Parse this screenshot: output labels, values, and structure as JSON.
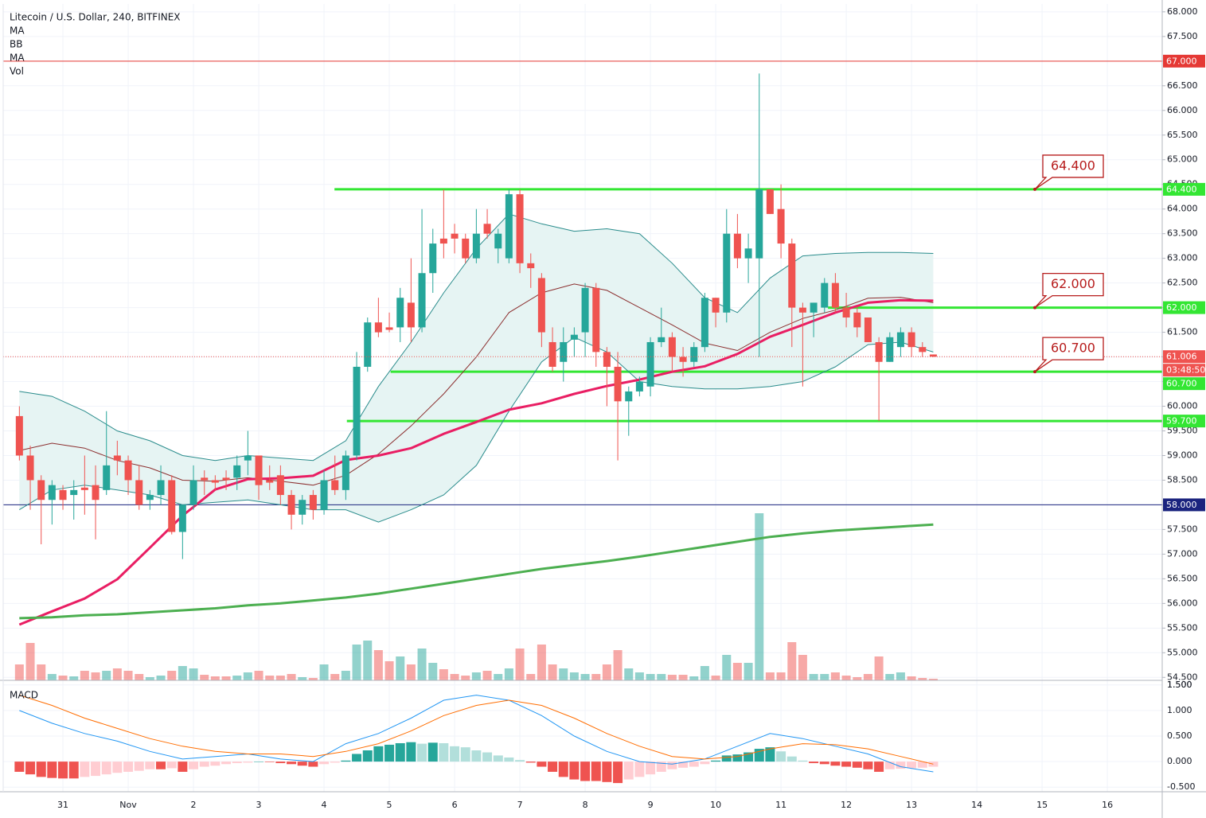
{
  "chart_data": [
    {
      "type": "candlestick",
      "title": "Litecoin / U.S. Dollar, 240, BITFINEX",
      "indicators": [
        "MA",
        "BB",
        "MA",
        "Vol"
      ],
      "xlim": [
        -0.915,
        16.84
      ],
      "xticks": [
        {
          "value": 0,
          "label": "31"
        },
        {
          "value": 1,
          "label": "Nov"
        },
        2,
        3,
        4,
        5,
        6,
        7,
        8,
        9,
        10,
        11,
        12,
        13,
        14,
        15,
        16
      ],
      "ylim": [
        54.44,
        68.24
      ],
      "yticks": [
        {
          "value": 54.5,
          "label": "54.500"
        },
        {
          "value": 55,
          "label": "55.000"
        },
        {
          "value": 55.5,
          "label": "55.500"
        },
        {
          "value": 56,
          "label": "56.000"
        },
        {
          "value": 56.5,
          "label": "56.500"
        },
        {
          "value": 57,
          "label": "57.000"
        },
        {
          "value": 57.5,
          "label": "57.500"
        },
        {
          "value": 58,
          "label": "58.000"
        },
        {
          "value": 58.5,
          "label": "58.500"
        },
        {
          "value": 59,
          "label": "59.000"
        },
        {
          "value": 59.5,
          "label": "59.500"
        },
        {
          "value": 60,
          "label": "60.000"
        },
        {
          "value": 60.5,
          "label": "60.500"
        },
        {
          "value": 61,
          "label": "61.000"
        },
        {
          "value": 61.5,
          "label": "61.500"
        },
        {
          "value": 62,
          "label": "62.000"
        },
        {
          "value": 62.5,
          "label": "62.500"
        },
        {
          "value": 63,
          "label": "63.000"
        },
        {
          "value": 63.5,
          "label": "63.500"
        },
        {
          "value": 64,
          "label": "64.000"
        },
        {
          "value": 64.5,
          "label": "64.500"
        },
        {
          "value": 65,
          "label": "65.000"
        },
        {
          "value": 65.5,
          "label": "65.500"
        },
        {
          "value": 66,
          "label": "66.000"
        },
        {
          "value": 66.5,
          "label": "66.500"
        },
        {
          "value": 67,
          "label": "67.000"
        },
        {
          "value": 67.5,
          "label": "67.500"
        },
        {
          "value": 68,
          "label": "68.000"
        }
      ],
      "grid": true,
      "up_color": "#26a69a",
      "down_color": "#ef5350",
      "x": [
        -0.667,
        -0.5,
        -0.333,
        -0.167,
        0,
        0.167,
        0.333,
        0.5,
        0.667,
        0.833,
        1,
        1.167,
        1.333,
        1.5,
        1.667,
        1.833,
        2,
        2.167,
        2.333,
        2.5,
        2.667,
        2.833,
        3,
        3.167,
        3.333,
        3.5,
        3.667,
        3.833,
        4,
        4.167,
        4.333,
        4.5,
        4.667,
        4.833,
        5,
        5.167,
        5.333,
        5.5,
        5.667,
        5.833,
        6,
        6.167,
        6.333,
        6.5,
        6.667,
        6.833,
        7,
        7.167,
        7.333,
        7.5,
        7.667,
        7.833,
        8,
        8.167,
        8.333,
        8.5,
        8.667,
        8.833,
        9,
        9.167,
        9.333,
        9.5,
        9.667,
        9.833,
        10,
        10.167,
        10.333,
        10.5,
        10.667,
        10.833,
        11,
        11.167,
        11.333,
        11.5,
        11.667,
        11.833,
        12,
        12.167,
        12.333,
        12.5,
        12.667,
        12.833,
        13,
        13.167,
        13.333
      ],
      "open": [
        59.8,
        59.0,
        58.5,
        58.1,
        58.3,
        58.2,
        58.35,
        58.4,
        58.3,
        59.0,
        58.9,
        58.5,
        58.1,
        58.2,
        58.5,
        57.45,
        58.0,
        58.55,
        58.5,
        58.55,
        58.55,
        58.9,
        59.0,
        58.5,
        58.6,
        58.2,
        57.8,
        58.2,
        57.9,
        58.5,
        58.3,
        59.0,
        60.8,
        61.7,
        61.6,
        61.6,
        62.1,
        61.6,
        62.7,
        63.4,
        63.5,
        63.4,
        63.0,
        63.7,
        63.2,
        63.0,
        64.3,
        62.9,
        62.6,
        61.3,
        60.9,
        61.35,
        61.5,
        62.4,
        61.1,
        60.8,
        60.1,
        60.3,
        60.4,
        61.3,
        61.4,
        61.0,
        60.9,
        61.2,
        62.2,
        61.9,
        63.5,
        63.0,
        63.0,
        64.4,
        64.0,
        63.3,
        62.0,
        61.9,
        62.0,
        62.5,
        62.0,
        61.9,
        61.8,
        61.3,
        60.9,
        61.2,
        61.5,
        61.2,
        61.05
      ],
      "high": [
        60.0,
        59.2,
        58.6,
        58.5,
        58.4,
        58.5,
        59.0,
        58.8,
        59.9,
        59.3,
        59.0,
        58.8,
        58.3,
        58.8,
        58.6,
        58.0,
        58.8,
        58.7,
        58.6,
        58.7,
        59.0,
        59.5,
        59.0,
        58.8,
        58.8,
        58.3,
        58.2,
        58.3,
        58.7,
        59.0,
        59.1,
        61.1,
        61.8,
        62.2,
        61.9,
        62.4,
        63.0,
        64.0,
        63.6,
        64.4,
        63.7,
        63.5,
        64.0,
        64.0,
        63.6,
        64.4,
        64.4,
        63.1,
        62.7,
        61.6,
        61.6,
        61.6,
        62.5,
        62.5,
        61.2,
        61.1,
        60.4,
        60.6,
        61.4,
        62.0,
        61.5,
        61.2,
        61.3,
        62.3,
        62.2,
        64.0,
        63.9,
        63.5,
        66.75,
        64.4,
        64.5,
        63.4,
        62.1,
        62.1,
        62.6,
        62.7,
        62.3,
        62.0,
        61.8,
        61.4,
        61.5,
        61.6,
        61.6,
        61.3,
        61.05
      ],
      "low": [
        58.9,
        57.9,
        57.2,
        57.6,
        57.9,
        57.7,
        57.8,
        57.3,
        58.2,
        58.6,
        58.2,
        57.9,
        57.9,
        58.0,
        57.4,
        56.9,
        57.9,
        58.2,
        58.3,
        58.3,
        58.3,
        58.6,
        58.1,
        58.3,
        58.0,
        57.5,
        57.6,
        57.7,
        57.8,
        58.2,
        58.1,
        58.9,
        60.7,
        61.4,
        61.5,
        61.3,
        61.3,
        61.5,
        62.3,
        63.0,
        63.1,
        62.9,
        62.9,
        63.4,
        62.9,
        62.9,
        62.7,
        62.4,
        61.2,
        60.7,
        60.5,
        61.0,
        61.0,
        60.8,
        60.0,
        58.9,
        59.4,
        60.2,
        60.2,
        61.2,
        60.7,
        60.6,
        60.8,
        61.1,
        61.6,
        61.7,
        62.8,
        62.5,
        61.0,
        63.9,
        63.0,
        61.2,
        60.4,
        61.4,
        61.9,
        61.9,
        61.6,
        61.4,
        61.3,
        59.7,
        60.9,
        61.0,
        61.0,
        61.0,
        61.0
      ],
      "close": [
        59.0,
        58.5,
        58.1,
        58.4,
        58.1,
        58.3,
        58.3,
        58.1,
        58.8,
        58.9,
        58.5,
        58.0,
        58.2,
        58.5,
        57.45,
        58.0,
        58.5,
        58.5,
        58.45,
        58.5,
        58.8,
        59.0,
        58.4,
        58.45,
        58.2,
        57.8,
        58.1,
        57.9,
        58.5,
        58.3,
        59.0,
        60.8,
        61.7,
        61.5,
        61.55,
        62.2,
        61.6,
        62.7,
        63.3,
        63.3,
        63.4,
        63.0,
        63.5,
        63.5,
        63.5,
        64.3,
        62.9,
        62.8,
        61.5,
        60.8,
        61.3,
        61.45,
        62.4,
        61.1,
        60.8,
        60.1,
        60.3,
        60.5,
        61.3,
        61.4,
        61.0,
        60.9,
        61.2,
        62.2,
        61.9,
        63.5,
        63.0,
        63.2,
        64.4,
        63.9,
        63.3,
        62.0,
        61.9,
        62.1,
        62.5,
        62.0,
        61.8,
        61.6,
        61.3,
        60.9,
        61.4,
        61.5,
        61.2,
        61.1,
        61.006
      ],
      "volume": [
        20,
        47,
        20,
        8,
        6,
        5,
        12,
        10,
        12,
        15,
        12,
        8,
        4,
        6,
        12,
        18,
        15,
        7,
        5,
        5,
        6,
        10,
        12,
        6,
        6,
        8,
        4,
        3,
        20,
        8,
        12,
        45,
        50,
        38,
        24,
        30,
        20,
        40,
        22,
        14,
        8,
        6,
        10,
        12,
        8,
        15,
        40,
        8,
        45,
        20,
        15,
        10,
        8,
        8,
        20,
        38,
        15,
        10,
        8,
        8,
        7,
        7,
        5,
        18,
        6,
        32,
        22,
        22,
        210,
        10,
        10,
        48,
        32,
        8,
        8,
        10,
        6,
        4,
        8,
        30,
        8,
        10,
        5,
        3,
        2
      ],
      "volume_ylim": [
        0,
        855
      ],
      "line_x": [
        -0.667,
        -0.167,
        0.333,
        0.833,
        1.333,
        1.833,
        2.333,
        2.833,
        3.333,
        3.833,
        4.333,
        4.833,
        5.333,
        5.833,
        6.333,
        6.833,
        7.333,
        7.833,
        8.333,
        8.833,
        9.333,
        9.833,
        10.333,
        10.833,
        11.333,
        11.833,
        12.333,
        12.833,
        13.333
      ],
      "bands": {
        "color": "#2a8c8c",
        "fill": "#e6f4f3",
        "middle_color": "#8b2e2e",
        "upper": [
          60.3,
          60.2,
          59.9,
          59.5,
          59.3,
          59.0,
          58.9,
          59.0,
          58.95,
          58.9,
          59.3,
          60.4,
          61.3,
          62.3,
          63.2,
          63.9,
          63.7,
          63.55,
          63.6,
          63.5,
          62.9,
          62.2,
          61.9,
          62.6,
          63.05,
          63.1,
          63.12,
          63.12,
          63.1
        ],
        "middle": [
          59.1,
          59.25,
          59.15,
          58.9,
          58.75,
          58.5,
          58.48,
          58.55,
          58.48,
          58.4,
          58.6,
          59.03,
          59.6,
          60.25,
          61.0,
          61.9,
          62.3,
          62.48,
          62.35,
          62.0,
          61.65,
          61.28,
          61.13,
          61.5,
          61.78,
          61.95,
          62.19,
          62.21,
          62.1
        ],
        "lower": [
          57.9,
          58.3,
          58.4,
          58.3,
          58.2,
          58.0,
          58.05,
          58.1,
          58.0,
          57.9,
          57.9,
          57.65,
          57.9,
          58.2,
          58.8,
          59.9,
          60.9,
          61.4,
          61.1,
          60.5,
          60.4,
          60.35,
          60.35,
          60.4,
          60.5,
          60.8,
          61.25,
          61.3,
          61.1
        ]
      },
      "moving_averages": [
        {
          "color": "#e91e63",
          "width": 3,
          "values": [
            55.57,
            55.84,
            56.1,
            56.49,
            57.13,
            57.78,
            58.31,
            58.52,
            58.54,
            58.59,
            58.91,
            59.0,
            59.15,
            59.44,
            59.68,
            59.93,
            60.06,
            60.25,
            60.41,
            60.54,
            60.7,
            60.81,
            61.06,
            61.41,
            61.65,
            61.9,
            62.1,
            62.15,
            62.14
          ]
        },
        {
          "color": "#4caf50",
          "width": 3,
          "values": [
            55.7,
            55.72,
            55.76,
            55.78,
            55.82,
            55.86,
            55.9,
            55.96,
            56.0,
            56.06,
            56.12,
            56.2,
            56.3,
            56.4,
            56.5,
            56.6,
            56.7,
            56.78,
            56.86,
            56.95,
            57.05,
            57.15,
            57.25,
            57.35,
            57.42,
            57.48,
            57.52,
            57.56,
            57.6
          ]
        }
      ],
      "levels": [
        {
          "value": 67,
          "label": "67.000",
          "color": "#e53935",
          "width": 1
        },
        {
          "value": 64.4,
          "label": "64.400",
          "color": "#33e633",
          "width": 3,
          "x_start": 4.16
        },
        {
          "value": 62,
          "label": "62.000",
          "color": "#33e633",
          "width": 3,
          "x_start": 11.72
        },
        {
          "value": 60.7,
          "label": "60.700",
          "color": "#33e633",
          "width": 3,
          "x_start": 5.02
        },
        {
          "value": 59.7,
          "label": "59.700",
          "color": "#33e633",
          "width": 3,
          "x_start": 4.35
        },
        {
          "value": 58,
          "label": "58.000",
          "color": "#1a237e",
          "width": 1
        }
      ],
      "callouts": [
        {
          "value": 64.4,
          "label": "64.400"
        },
        {
          "value": 62,
          "label": "62.000"
        },
        {
          "value": 60.7,
          "label": "60.700"
        }
      ],
      "last_price": {
        "value": 61.006,
        "label": "61.006",
        "countdown": "03:48:50",
        "color": "#ef5350"
      }
    },
    {
      "type": "macd",
      "title": "MACD",
      "ylim": [
        -0.59,
        1.59
      ],
      "yticks": [
        {
          "value": -0.5,
          "label": "-0.500"
        },
        {
          "value": 0,
          "label": "0.000"
        },
        {
          "value": 0.5,
          "label": "0.500"
        },
        {
          "value": 1,
          "label": "1.000"
        },
        {
          "value": 1.5,
          "label": "1.500"
        }
      ],
      "series": [
        {
          "color": "#2196f3",
          "values": [
            1.0,
            0.75,
            0.55,
            0.4,
            0.2,
            0.05,
            0.1,
            0.15,
            0.05,
            0.0,
            0.35,
            0.55,
            0.85,
            1.2,
            1.3,
            1.2,
            0.9,
            0.5,
            0.2,
            0.0,
            -0.05,
            0.05,
            0.3,
            0.55,
            0.45,
            0.3,
            0.15,
            -0.1,
            -0.2
          ]
        },
        {
          "color": "#ff6d00",
          "values": [
            1.3,
            1.1,
            0.85,
            0.65,
            0.45,
            0.3,
            0.2,
            0.15,
            0.15,
            0.1,
            0.2,
            0.35,
            0.6,
            0.9,
            1.1,
            1.2,
            1.1,
            0.85,
            0.55,
            0.3,
            0.1,
            0.05,
            0.1,
            0.25,
            0.35,
            0.33,
            0.25,
            0.1,
            -0.05
          ]
        }
      ],
      "histogram": [
        -0.2,
        -0.25,
        -0.3,
        -0.32,
        -0.33,
        -0.33,
        -0.3,
        -0.28,
        -0.25,
        -0.22,
        -0.2,
        -0.18,
        -0.15,
        -0.15,
        -0.13,
        -0.2,
        -0.15,
        -0.1,
        -0.08,
        -0.05,
        -0.03,
        -0.02,
        0.0,
        -0.01,
        -0.03,
        -0.05,
        -0.08,
        -0.1,
        -0.05,
        -0.02,
        0.02,
        0.15,
        0.22,
        0.3,
        0.33,
        0.36,
        0.38,
        0.35,
        0.37,
        0.36,
        0.3,
        0.28,
        0.22,
        0.18,
        0.12,
        0.08,
        0.03,
        -0.02,
        -0.1,
        -0.2,
        -0.3,
        -0.35,
        -0.38,
        -0.38,
        -0.4,
        -0.42,
        -0.35,
        -0.3,
        -0.25,
        -0.2,
        -0.15,
        -0.12,
        -0.1,
        -0.05,
        0.02,
        0.12,
        0.14,
        0.18,
        0.25,
        0.28,
        0.2,
        0.1,
        0.02,
        -0.03,
        -0.05,
        -0.08,
        -0.1,
        -0.12,
        -0.15,
        -0.2,
        -0.15,
        -0.14,
        -0.13,
        -0.12,
        -0.1
      ],
      "histogram_colors": [
        "#26a69a",
        "#b2dfdb",
        "#ef5350",
        "#ffcdd2"
      ]
    }
  ]
}
